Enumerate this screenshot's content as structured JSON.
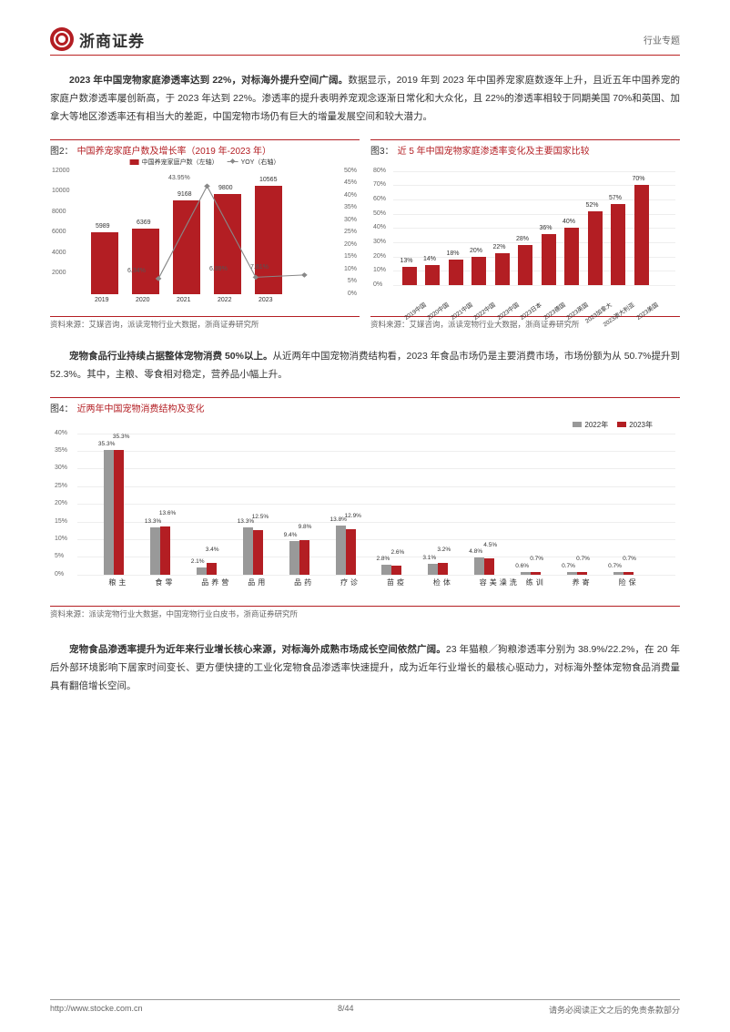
{
  "header": {
    "company": "浙商证券",
    "category": "行业专题"
  },
  "para1": {
    "bold": "2023 年中国宠物家庭渗透率达到 22%，对标海外提升空间广阔。",
    "text": "数据显示，2019 年到 2023 年中国养宠家庭数逐年上升，且近五年中国养宠的家庭户数渗透率屡创新高，于 2023 年达到 22%。渗透率的提升表明养宠观念逐渐日常化和大众化，且 22%的渗透率相较于同期美国 70%和英国、加拿大等地区渗透率还有相当大的差距，中国宠物市场仍有巨大的增量发展空间和较大潜力。"
  },
  "chart2": {
    "title_pre": "图2：",
    "title": "中国养宠家庭户数及增长率（2019 年-2023 年）",
    "legend": [
      "中国养宠家庭户数（左轴）",
      "YOY（右轴）"
    ],
    "years": [
      "2019",
      "2020",
      "2021",
      "2022",
      "2023"
    ],
    "values": [
      5989,
      6369,
      9168,
      9800,
      10565
    ],
    "yoy_labels": [
      "",
      "6.34%",
      "43.95%",
      "6.89%",
      "7.81%"
    ],
    "yoy_values": [
      0,
      6.34,
      43.95,
      6.89,
      7.81
    ],
    "ylim": [
      0,
      12000
    ],
    "ytick": [
      2000,
      4000,
      6000,
      8000,
      10000,
      12000
    ],
    "y2lim": [
      0,
      50
    ],
    "y2tick": [
      0,
      5,
      10,
      15,
      20,
      25,
      30,
      35,
      40,
      45,
      50
    ],
    "bar_color": "#b31e23",
    "line_color": "#888",
    "source": "资料来源：艾媒咨询，派读宠物行业大数据，浙商证券研究所"
  },
  "chart3": {
    "title_pre": "图3：",
    "title": "近 5 年中国宠物家庭渗透率变化及主要国家比较",
    "labels": [
      "2019中国",
      "2020中国",
      "2021中国",
      "2022中国",
      "2023中国",
      "2023日本",
      "2023德国",
      "2023英国",
      "2023加拿大",
      "2023澳大利亚",
      "2023美国"
    ],
    "values": [
      13,
      14,
      18,
      20,
      22,
      28,
      36,
      40,
      52,
      57,
      70
    ],
    "ylim": [
      0,
      80
    ],
    "ytick": [
      0,
      10,
      20,
      30,
      40,
      50,
      60,
      70,
      80
    ],
    "bar_color": "#b31e23",
    "source": "资料来源：艾媒咨询，派读宠物行业大数据，浙商证券研究所"
  },
  "para2": {
    "bold": "宠物食品行业持续占据整体宠物消费 50%以上。",
    "text": "从近两年中国宠物消费结构看，2023 年食品市场仍是主要消费市场，市场份额为从 50.7%提升到 52.3%。其中，主粮、零食相对稳定，营养品小幅上升。"
  },
  "chart4": {
    "title_pre": "图4：",
    "title": "近两年中国宠物消费结构及变化",
    "legend": [
      "2022年",
      "2023年"
    ],
    "categories": [
      "主粮",
      "零食",
      "营养品",
      "用品",
      "药品",
      "诊疗",
      "疫苗",
      "体检",
      "洗澡美容",
      "训练",
      "寄养",
      "保险"
    ],
    "values_2022": [
      35.3,
      13.3,
      2.1,
      13.3,
      9.4,
      13.8,
      2.8,
      3.1,
      4.8,
      0.6,
      0.7,
      0.7
    ],
    "values_2023": [
      35.3,
      13.6,
      3.4,
      12.5,
      9.8,
      12.9,
      2.6,
      3.2,
      4.5,
      0.7,
      0.7,
      0.7
    ],
    "ylim": [
      0,
      40
    ],
    "ytick": [
      0,
      5,
      10,
      15,
      20,
      25,
      30,
      35,
      40
    ],
    "bar1_color": "#999999",
    "bar2_color": "#b31e23",
    "source": "资料来源：派读宠物行业大数据，中国宠物行业白皮书，浙商证券研究所"
  },
  "para3": {
    "bold": "宠物食品渗透率提升为近年来行业增长核心来源，对标海外成熟市场成长空间依然广阔。",
    "text": "23 年猫粮／狗粮渗透率分别为 38.9%/22.2%，在 20 年后外部环境影响下居家时间变长、更方便快捷的工业化宠物食品渗透率快速提升，成为近年行业增长的最核心驱动力，对标海外整体宠物食品消费量具有翻倍增长空间。"
  },
  "footer": {
    "url": "http://www.stocke.com.cn",
    "page": "8/44",
    "disclaimer": "请务必阅读正文之后的免责条款部分"
  }
}
